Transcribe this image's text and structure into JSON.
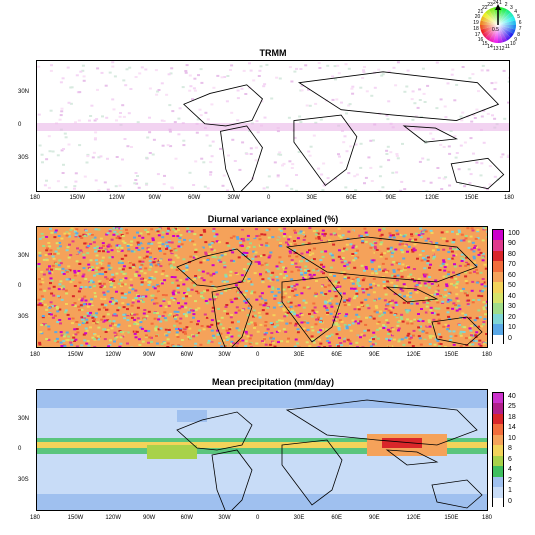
{
  "panels": [
    {
      "title": "TRMM"
    },
    {
      "title": "Diurnal variance explained (%)"
    },
    {
      "title": "Mean precipitation (mm/day)"
    }
  ],
  "x_ticks": [
    "180",
    "150W",
    "120W",
    "90W",
    "60W",
    "30W",
    "0",
    "30E",
    "60E",
    "90E",
    "120E",
    "150E",
    "180"
  ],
  "y_ticks": [
    "30N",
    "0",
    "30S"
  ],
  "colorbar_variance": {
    "labels": [
      "100",
      "90",
      "80",
      "70",
      "60",
      "50",
      "40",
      "30",
      "20",
      "10",
      "0"
    ],
    "colors": [
      "#cc00cc",
      "#e03a8c",
      "#d9262a",
      "#f26d3c",
      "#f5a25a",
      "#f3d35a",
      "#d6e36a",
      "#9fdc8a",
      "#7fd6d6",
      "#5aa8e6",
      "#ffffff"
    ]
  },
  "colorbar_precip": {
    "labels": [
      "40",
      "25",
      "18",
      "14",
      "10",
      "8",
      "6",
      "4",
      "2",
      "1",
      "0"
    ],
    "colors": [
      "#cc33cc",
      "#b0208a",
      "#d9262a",
      "#f26d3c",
      "#f5a25a",
      "#f3d35a",
      "#a8d24a",
      "#3fbf5f",
      "#9fc0ef",
      "#c8dcf7",
      "#ffffff"
    ]
  },
  "clock_wheel": {
    "hours": [
      "1",
      "2",
      "3",
      "4",
      "5",
      "6",
      "7",
      "8",
      "9",
      "10",
      "11",
      "12",
      "13",
      "14",
      "15",
      "16",
      "17",
      "18",
      "19",
      "20",
      "21",
      "22",
      "23",
      "24"
    ],
    "center_label": "0.5"
  }
}
